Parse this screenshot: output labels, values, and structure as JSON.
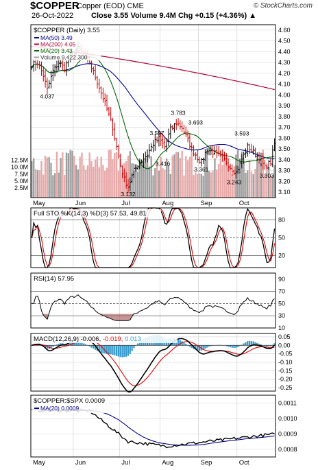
{
  "header": {
    "symbol": "$COPPER",
    "description": "Copper (EOD)  CME",
    "date": "26-Oct-2022",
    "quote": "Close 3.55  Volume 9.4M  Chg +0.15 (+4.36%) ▲",
    "site": "© StockCharts.com"
  },
  "colors": {
    "up": "#000000",
    "down": "#cc0000",
    "ma50": "#00008b",
    "ma200": "#b00030",
    "ma20": "#006400",
    "vol_up": "#9f9f9f",
    "vol_down": "#e8a9a9",
    "grid": "#d0d0d0",
    "sto_k": "#000000",
    "sto_d": "#d40000",
    "macd": "#000000",
    "signal": "#e00000",
    "hist": "#3399cc",
    "rs": "#000000",
    "rs_ma": "#00008b"
  },
  "chart_data": [
    {
      "type": "candlestick",
      "title": "$COPPER (Daily) 3.55",
      "legend": [
        {
          "label": "MA(50) 3.49",
          "color_key": "ma50"
        },
        {
          "label": "MA(200) 4.05",
          "color_key": "ma200"
        },
        {
          "label": "MA(20) 3.43",
          "color_key": "ma20"
        },
        {
          "label": "Volume 9,422,300",
          "color_key": "vol_up"
        }
      ],
      "legend_position": "top-left",
      "ylim": [
        3.05,
        4.65
      ],
      "y_ticks": [
        4.6,
        4.5,
        4.4,
        4.3,
        4.2,
        4.1,
        4.0,
        3.9,
        3.8,
        3.7,
        3.6,
        3.5,
        3.4,
        3.3,
        3.2,
        3.1
      ],
      "volume_ticks": [
        "12.5M",
        "10.0M",
        "7.5M",
        "5.0M",
        "2.5M"
      ],
      "x_labels": [
        "May",
        "Jun",
        "Jul",
        "Aug",
        "Sep",
        "Oct"
      ],
      "anchors": [
        [
          0,
          4.28
        ],
        [
          3,
          4.3
        ],
        [
          6,
          4.18
        ],
        [
          8,
          4.05
        ],
        [
          11,
          4.22
        ],
        [
          14,
          4.3
        ],
        [
          17,
          4.25
        ],
        [
          20,
          4.36
        ],
        [
          24,
          4.43
        ],
        [
          27,
          4.38
        ],
        [
          30,
          4.3
        ],
        [
          34,
          4.12
        ],
        [
          38,
          3.92
        ],
        [
          42,
          3.7
        ],
        [
          44,
          3.52
        ],
        [
          46,
          3.35
        ],
        [
          48,
          3.22
        ],
        [
          50,
          3.15
        ],
        [
          53,
          3.3
        ],
        [
          56,
          3.38
        ],
        [
          60,
          3.45
        ],
        [
          63,
          3.55
        ],
        [
          66,
          3.6
        ],
        [
          69,
          3.52
        ],
        [
          72,
          3.68
        ],
        [
          75,
          3.74
        ],
        [
          78,
          3.7
        ],
        [
          80,
          3.62
        ],
        [
          83,
          3.5
        ],
        [
          86,
          3.42
        ],
        [
          88,
          3.38
        ],
        [
          91,
          3.5
        ],
        [
          94,
          3.47
        ],
        [
          97,
          3.44
        ],
        [
          100,
          3.4
        ],
        [
          103,
          3.33
        ],
        [
          106,
          3.28
        ],
        [
          109,
          3.4
        ],
        [
          112,
          3.52
        ],
        [
          115,
          3.47
        ],
        [
          118,
          3.42
        ],
        [
          121,
          3.33
        ],
        [
          124,
          3.38
        ],
        [
          126,
          3.55
        ]
      ],
      "annotations": [
        {
          "label": "4.037",
          "index": 8,
          "value": 4.037
        },
        {
          "label": "3.597",
          "index": 65,
          "value": 3.597
        },
        {
          "label": "3.416",
          "index": 68,
          "value": 3.416
        },
        {
          "label": "3.783",
          "index": 76,
          "value": 3.783
        },
        {
          "label": "3.693",
          "index": 85,
          "value": 3.693
        },
        {
          "label": "3.361",
          "index": 88,
          "value": 3.361
        },
        {
          "label": "3.132",
          "index": 50,
          "value": 3.132
        },
        {
          "label": "3.593",
          "index": 109,
          "value": 3.593
        },
        {
          "label": "3.243",
          "index": 105,
          "value": 3.243
        },
        {
          "label": "3.303",
          "index": 122,
          "value": 3.303
        }
      ]
    },
    {
      "type": "line",
      "title": "Full STO %K(14,3) %D(3) 57.53, 49.81",
      "ylim": [
        0,
        100
      ],
      "y_ticks": [
        80,
        50,
        20
      ],
      "reference_lines": [
        80,
        50,
        20
      ],
      "series": [
        {
          "name": "%K",
          "last": 57.53
        },
        {
          "name": "%D",
          "last": 49.81
        }
      ]
    },
    {
      "type": "line",
      "title": "RSI(14) 57.95",
      "ylim": [
        10,
        100
      ],
      "y_ticks": [
        90,
        70,
        50,
        30,
        10
      ],
      "reference_lines": [
        70,
        50,
        30
      ],
      "series": [
        {
          "name": "RSI(14)",
          "last": 57.95
        }
      ]
    },
    {
      "type": "line",
      "title": "MACD(12,26,9) -0.006, -0.019, 0.013",
      "title_parts": [
        "MACD(12,26,9)",
        "-0.006",
        "-0.019",
        "0.013"
      ],
      "ylim": [
        -0.27,
        0.07
      ],
      "y_ticks": [
        "0.05",
        "0.00",
        "-0.05",
        "-0.10",
        "-0.15",
        "-0.20",
        "-0.25"
      ],
      "series": [
        {
          "name": "MACD",
          "last": -0.006
        },
        {
          "name": "Signal",
          "last": -0.019
        },
        {
          "name": "Histogram",
          "last": 0.013
        }
      ]
    },
    {
      "type": "line",
      "title": "$COPPER:$SPX 0.0009",
      "legend": [
        {
          "label": "MA(20) 0.0009",
          "color_key": "rs_ma"
        }
      ],
      "ylim": [
        0.00075,
        0.00115
      ],
      "y_ticks": [
        "0.0011",
        "0.0010",
        "0.0009",
        "0.0008"
      ],
      "series": [
        {
          "name": "$COPPER:$SPX",
          "last": 0.0009
        },
        {
          "name": "MA(20)",
          "last": 0.0009
        }
      ]
    }
  ]
}
